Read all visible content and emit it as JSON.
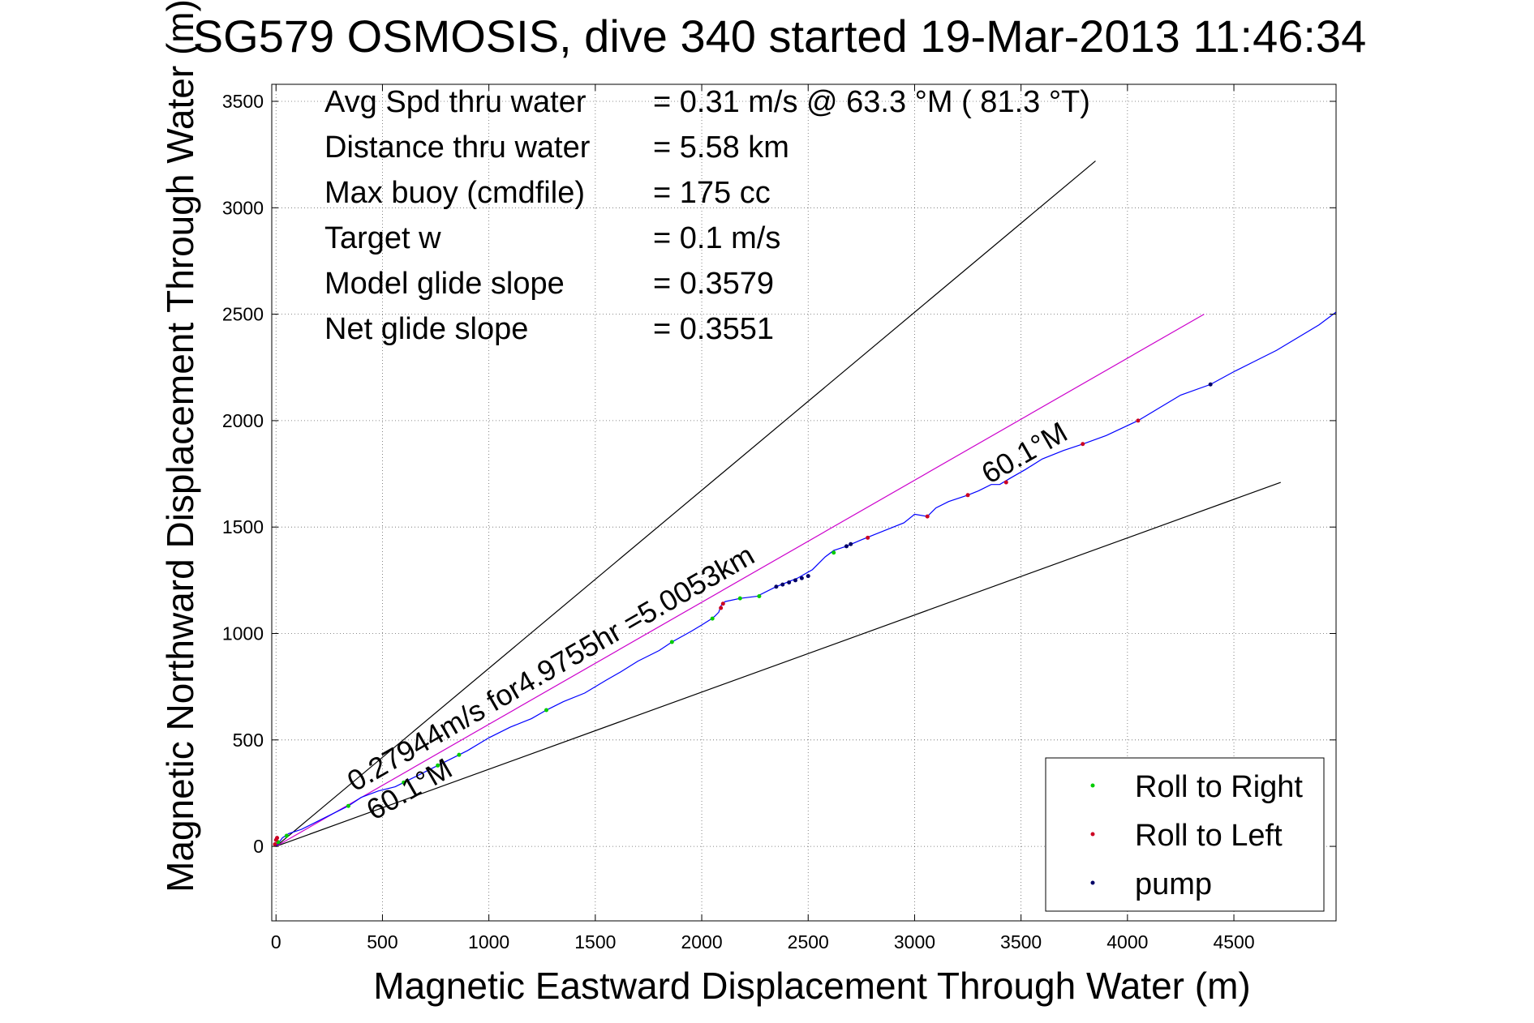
{
  "chart_data": {
    "type": "line",
    "title": "SG579 OSMOSIS, dive 340 started 19-Mar-2013 11:46:34",
    "xlabel": "Magnetic Eastward Displacement Through Water (m)",
    "ylabel": "Magnetic Northward Displacement Through Water (m)",
    "xlim": [
      -20,
      4980
    ],
    "ylim": [
      -350,
      3580
    ],
    "xticks": [
      0,
      500,
      1000,
      1500,
      2000,
      2500,
      3000,
      3500,
      4000,
      4500
    ],
    "yticks": [
      0,
      500,
      1000,
      1500,
      2000,
      2500,
      3000,
      3500
    ],
    "grid": true,
    "info_lines": [
      {
        "label": "Avg Spd thru water",
        "value": "=  0.31 m/s @  63.3 °M ( 81.3 °T)"
      },
      {
        "label": "Distance thru water",
        "value": "=  5.58 km"
      },
      {
        "label": "Max buoy (cmdfile)",
        "value": "= 175 cc"
      },
      {
        "label": "Target w",
        "value": "= 0.1 m/s"
      },
      {
        "label": "Model glide slope",
        "value": "= 0.3579"
      },
      {
        "label": "Net glide slope",
        "value": "= 0.3551"
      }
    ],
    "annotations": [
      {
        "text": "0.27944m/s for4.9755hr =5.0053km",
        "x": 370,
        "y": 255,
        "angle_deg": 29.9
      },
      {
        "text": "60.1°M",
        "x": 460,
        "y": 120,
        "angle_deg": 29.9
      },
      {
        "text": "60.1°M",
        "x": 3350,
        "y": 1700,
        "angle_deg": 29.9
      }
    ],
    "reference_lines": [
      {
        "name": "upper bound",
        "color": "#000000",
        "x": [
          0,
          3850
        ],
        "y": [
          0,
          3220
        ]
      },
      {
        "name": "lower bound",
        "color": "#000000",
        "x": [
          0,
          4720
        ],
        "y": [
          0,
          1710
        ]
      },
      {
        "name": "heading",
        "color": "#cc00cc",
        "x": [
          0,
          4360
        ],
        "y": [
          0,
          2500
        ]
      }
    ],
    "track": {
      "color": "#0000ff",
      "x": [
        0,
        30,
        60,
        120,
        200,
        300,
        340,
        400,
        480,
        560,
        600,
        640,
        700,
        760,
        840,
        900,
        1000,
        1100,
        1200,
        1270,
        1350,
        1450,
        1550,
        1620,
        1700,
        1800,
        1860,
        1950,
        2000,
        2040,
        2060,
        2080,
        2090,
        2110,
        2180,
        2260,
        2350,
        2450,
        2520,
        2580,
        2620,
        2680,
        2750,
        2800,
        2850,
        2950,
        3000,
        3060,
        3100,
        3160,
        3250,
        3300,
        3360,
        3400,
        3450,
        3520,
        3600,
        3700,
        3790,
        3900,
        4050,
        4150,
        4250,
        4390,
        4500,
        4600,
        4700,
        4800,
        4900,
        4980
      ],
      "y": [
        0,
        40,
        60,
        80,
        120,
        170,
        190,
        230,
        260,
        280,
        300,
        320,
        350,
        380,
        420,
        450,
        510,
        560,
        600,
        640,
        680,
        720,
        780,
        820,
        870,
        920,
        960,
        1010,
        1040,
        1065,
        1080,
        1100,
        1130,
        1150,
        1165,
        1175,
        1220,
        1260,
        1300,
        1360,
        1390,
        1410,
        1440,
        1460,
        1480,
        1520,
        1560,
        1550,
        1590,
        1620,
        1650,
        1670,
        1700,
        1700,
        1730,
        1770,
        1820,
        1860,
        1890,
        1930,
        2000,
        2060,
        2120,
        2170,
        2230,
        2280,
        2330,
        2390,
        2450,
        2510
      ]
    },
    "series": [
      {
        "name": "Roll to Right",
        "color": "#00cc00",
        "x": [
          10,
          50,
          340,
          600,
          760,
          860,
          1270,
          1860,
          2050,
          2180,
          2270,
          2620
        ],
        "y": [
          20,
          50,
          190,
          300,
          380,
          430,
          640,
          960,
          1070,
          1165,
          1175,
          1380
        ]
      },
      {
        "name": "Roll to Left",
        "color": "#cc0022",
        "x": [
          -5,
          0,
          5,
          2090,
          2100,
          2780,
          3060,
          3250,
          3430,
          3790,
          4050
        ],
        "y": [
          10,
          30,
          40,
          1120,
          1140,
          1450,
          1550,
          1650,
          1710,
          1890,
          2000
        ]
      },
      {
        "name": "pump",
        "color": "#000066",
        "x": [
          2350,
          2380,
          2410,
          2440,
          2470,
          2500,
          2680,
          2700,
          4390
        ],
        "y": [
          1220,
          1230,
          1240,
          1250,
          1260,
          1270,
          1410,
          1420,
          2170
        ]
      }
    ],
    "legend_position": "bottom-right",
    "legend": [
      "Roll to Right",
      "Roll to Left",
      "pump"
    ]
  }
}
